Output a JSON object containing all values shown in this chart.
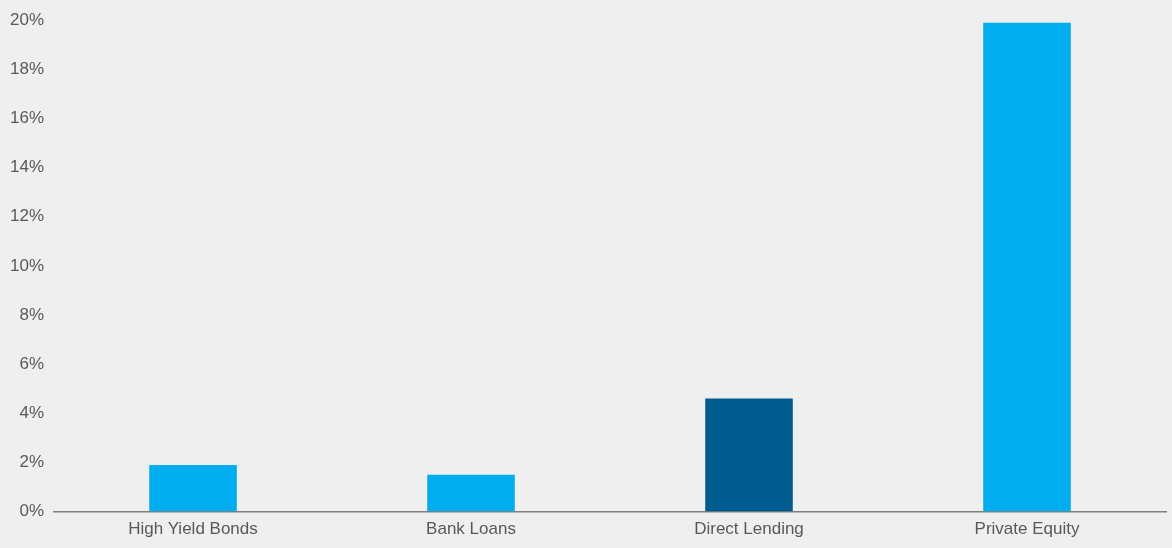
{
  "chart_data": {
    "type": "bar",
    "categories": [
      "High Yield Bonds",
      "Bank Loans",
      "Direct Lending",
      "Private Equity"
    ],
    "values": [
      1.9,
      1.5,
      4.6,
      19.9
    ],
    "colors": [
      "#00aeef",
      "#00aeef",
      "#005b8f",
      "#00aeef"
    ],
    "ylim": [
      0,
      20
    ],
    "yticks": [
      {
        "value": 0,
        "label": "0%"
      },
      {
        "value": 2,
        "label": "2%"
      },
      {
        "value": 4,
        "label": "4%"
      },
      {
        "value": 6,
        "label": "6%"
      },
      {
        "value": 8,
        "label": "8%"
      },
      {
        "value": 10,
        "label": "10%"
      },
      {
        "value": 12,
        "label": "12%"
      },
      {
        "value": 14,
        "label": "14%"
      },
      {
        "value": 16,
        "label": "16%"
      },
      {
        "value": 18,
        "label": "18%"
      },
      {
        "value": 20,
        "label": "20%"
      }
    ],
    "grid": false,
    "legend": false
  }
}
